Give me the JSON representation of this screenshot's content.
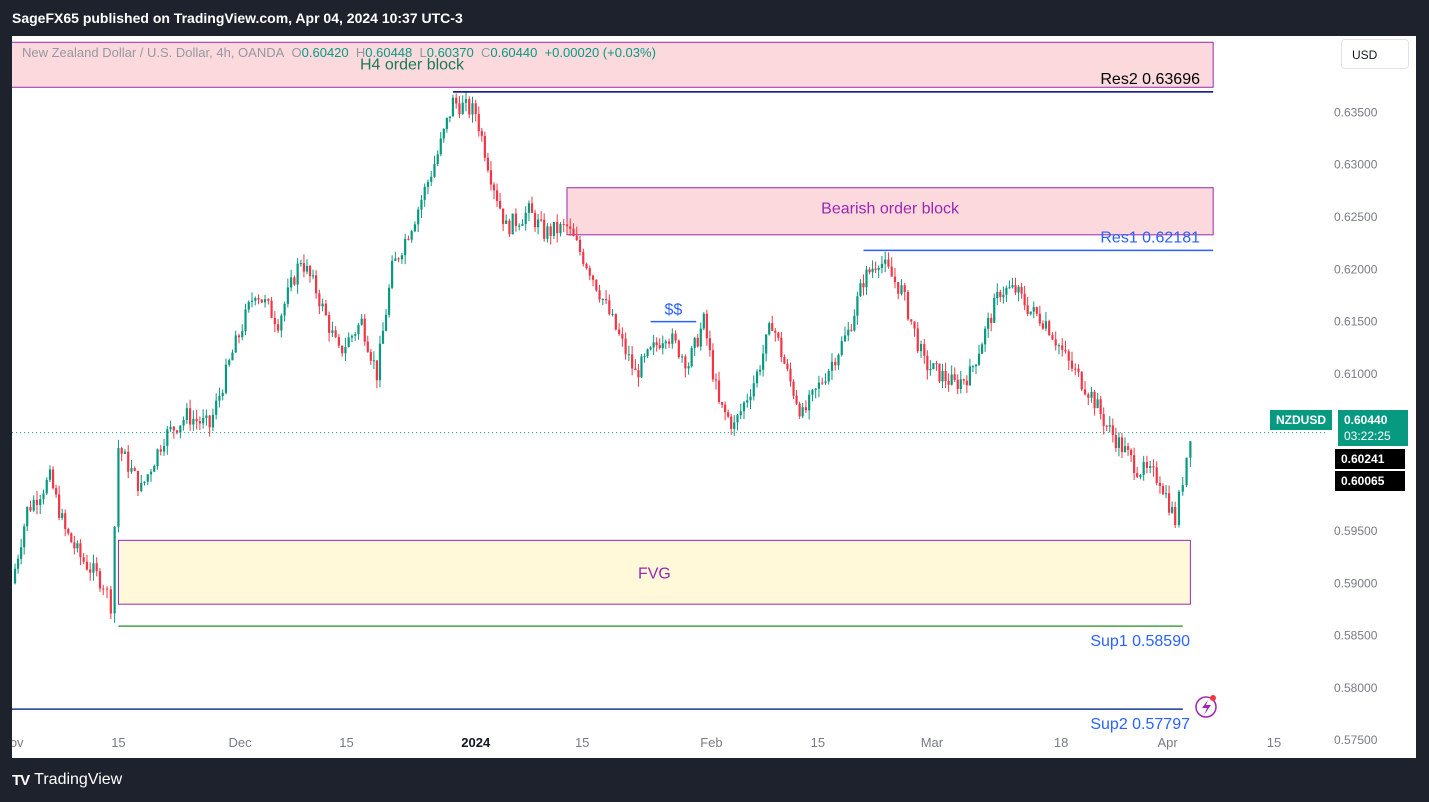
{
  "header": {
    "publish_line": "SageFX65 published on TradingView.com, Apr 04, 2024 10:37 UTC-3"
  },
  "legend": {
    "symbol": "New Zealand Dollar / U.S. Dollar, 4h, OANDA",
    "o_label": "O",
    "o": "0.60420",
    "h_label": "H",
    "h": "0.60448",
    "l_label": "L",
    "l": "0.60370",
    "c_label": "C",
    "c": "0.60440",
    "change": "+0.00020 (+0.03%)"
  },
  "currency_button": "USD",
  "footer": {
    "logo_mark": "TV",
    "logo_text": "TradingView"
  },
  "price_tags": {
    "symbol": "NZDUSD",
    "price": "0.60440",
    "countdown": "03:22:25",
    "level_a": "0.60241",
    "level_b": "0.60065"
  },
  "colors": {
    "up": "#089981",
    "down": "#f23645",
    "zone_pink": "#fcd9dd",
    "zone_yellow": "#fff9d9",
    "zone_border": "#9c27b0",
    "level_blue": "#2962ff",
    "level_green": "#43a047",
    "text_purple": "#9c27b0",
    "text_green": "#1b7a57"
  },
  "chart_data": {
    "type": "candlestick",
    "ylim": [
      0.5733,
      0.6423
    ],
    "y_ticks": [
      "0.63500",
      "0.63000",
      "0.62500",
      "0.62000",
      "0.61500",
      "0.61000",
      "0.59500",
      "0.59000",
      "0.58500",
      "0.58000",
      "0.57500"
    ],
    "x_ticks": [
      "Nov",
      "15",
      "Dec",
      "15",
      "2024",
      "15",
      "Feb",
      "15",
      "Mar",
      "18",
      "Apr",
      "15"
    ],
    "x_tick_dates": [
      "2023-11-01",
      "2023-11-15",
      "2023-12-01",
      "2023-12-15",
      "2024-01-01",
      "2024-01-15",
      "2024-02-01",
      "2024-02-15",
      "2024-03-01",
      "2024-03-18",
      "2024-04-01",
      "2024-04-15"
    ],
    "series_path": [
      [
        "2023-11-01",
        0.59
      ],
      [
        "2023-11-03",
        0.597
      ],
      [
        "2023-11-06",
        0.6
      ],
      [
        "2023-11-08",
        0.595
      ],
      [
        "2023-11-10",
        0.5925
      ],
      [
        "2023-11-13",
        0.59
      ],
      [
        "2023-11-14",
        0.588
      ],
      [
        "2023-11-15",
        0.603
      ],
      [
        "2023-11-18",
        0.599
      ],
      [
        "2023-11-21",
        0.604
      ],
      [
        "2023-11-24",
        0.606
      ],
      [
        "2023-11-27",
        0.605
      ],
      [
        "2023-11-30",
        0.612
      ],
      [
        "2023-12-03",
        0.618
      ],
      [
        "2023-12-06",
        0.615
      ],
      [
        "2023-12-09",
        0.621
      ],
      [
        "2023-12-11",
        0.618
      ],
      [
        "2023-12-14",
        0.612
      ],
      [
        "2023-12-17",
        0.615
      ],
      [
        "2023-12-19",
        0.61
      ],
      [
        "2023-12-21",
        0.62
      ],
      [
        "2023-12-24",
        0.625
      ],
      [
        "2023-12-27",
        0.631
      ],
      [
        "2023-12-29",
        0.636
      ],
      [
        "2024-01-01",
        0.635
      ],
      [
        "2024-01-03",
        0.629
      ],
      [
        "2024-01-05",
        0.624
      ],
      [
        "2024-01-08",
        0.6255
      ],
      [
        "2024-01-10",
        0.6235
      ],
      [
        "2024-01-13",
        0.624
      ],
      [
        "2024-01-16",
        0.62
      ],
      [
        "2024-01-19",
        0.615
      ],
      [
        "2024-01-22",
        0.61
      ],
      [
        "2024-01-26",
        0.614
      ],
      [
        "2024-01-29",
        0.611
      ],
      [
        "2024-01-31",
        0.615
      ],
      [
        "2024-02-02",
        0.607
      ],
      [
        "2024-02-04",
        0.605
      ],
      [
        "2024-02-07",
        0.61
      ],
      [
        "2024-02-09",
        0.615
      ],
      [
        "2024-02-11",
        0.61
      ],
      [
        "2024-02-13",
        0.606
      ],
      [
        "2024-02-16",
        0.61
      ],
      [
        "2024-02-19",
        0.614
      ],
      [
        "2024-02-21",
        0.619
      ],
      [
        "2024-02-23",
        0.621
      ],
      [
        "2024-02-26",
        0.618
      ],
      [
        "2024-02-29",
        0.611
      ],
      [
        "2024-03-04",
        0.609
      ],
      [
        "2024-03-06",
        0.61
      ],
      [
        "2024-03-08",
        0.614
      ],
      [
        "2024-03-10",
        0.618
      ],
      [
        "2024-03-12",
        0.618
      ],
      [
        "2024-03-14",
        0.616
      ],
      [
        "2024-03-16",
        0.615
      ],
      [
        "2024-03-19",
        0.611
      ],
      [
        "2024-03-22",
        0.608
      ],
      [
        "2024-03-24",
        0.605
      ],
      [
        "2024-03-26",
        0.603
      ],
      [
        "2024-03-28",
        0.601
      ],
      [
        "2024-03-31",
        0.6
      ],
      [
        "2024-04-02",
        0.596
      ],
      [
        "2024-04-03",
        0.6
      ],
      [
        "2024-04-04",
        0.6044
      ]
    ],
    "annotations": {
      "h4_block": {
        "label": "H4 order block",
        "from": "2023-10-30",
        "to": "2024-04-07",
        "y_top": 0.6417,
        "y_bottom": 0.6374
      },
      "bearish_block": {
        "label": "Bearish order block",
        "from": "2024-01-13",
        "to": "2024-04-07",
        "y_top": 0.6278,
        "y_bottom": 0.6233
      },
      "fvg": {
        "label": "FVG",
        "from": "2023-11-15",
        "to": "2024-04-04",
        "y_top": 0.5941,
        "y_bottom": 0.588
      },
      "res2": {
        "label": "Res2 0.63696",
        "value": 0.63696,
        "from": "2023-12-29",
        "to": "2024-04-07"
      },
      "res1": {
        "label": "Res1 0.62181",
        "value": 0.62181,
        "from": "2024-02-21",
        "to": "2024-04-07"
      },
      "sup1": {
        "label": "Sup1 0.58590",
        "value": 0.5859,
        "from": "2023-11-15",
        "to": "2024-04-03"
      },
      "sup2": {
        "label": "Sup2  0.57797",
        "value": 0.57797,
        "from": "2023-10-30",
        "to": "2024-04-03"
      },
      "liquidity": {
        "label": "$$",
        "from": "2024-01-24",
        "to": "2024-01-30",
        "value": 0.615
      },
      "current_price": 0.6044
    }
  }
}
